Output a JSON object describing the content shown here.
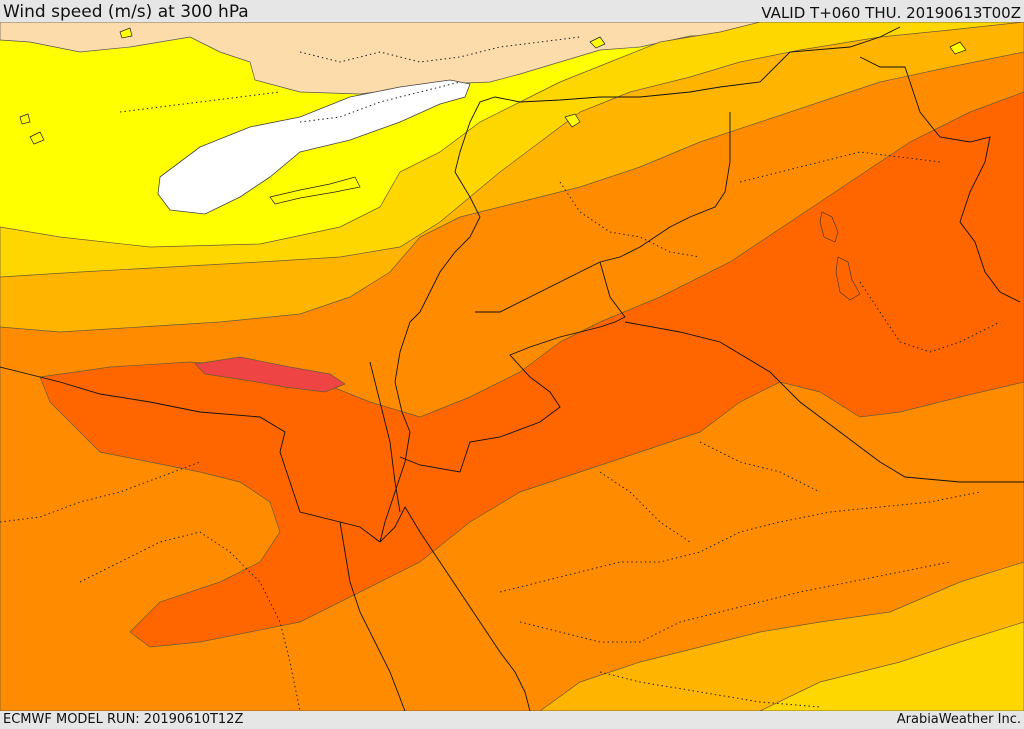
{
  "header": {
    "title": "Wind speed (m/s) at 300 hPa",
    "valid": "VALID T+060 THU. 20190613T00Z"
  },
  "footer": {
    "model_run": "ECMWF MODEL RUN: 20190610T12Z",
    "credit": "ArabiaWeather Inc."
  },
  "map": {
    "variable": "wind speed",
    "level": "300 hPa",
    "colors": {
      "land_light": "#fddcab",
      "sea_white": "#ffffff",
      "band_1": "#ffff00",
      "band_2": "#ffd700",
      "band_3": "#ffb400",
      "band_4": "#ff8c00",
      "band_5": "#ff6600",
      "band_6": "#ee4444"
    }
  }
}
